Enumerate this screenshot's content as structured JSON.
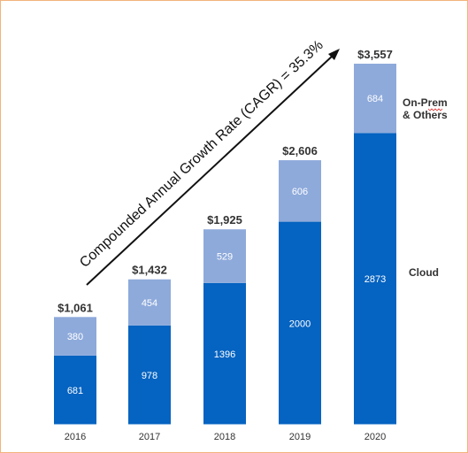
{
  "chart_data": {
    "type": "bar",
    "stacked": true,
    "categories": [
      "2016",
      "2017",
      "2018",
      "2019",
      "2020"
    ],
    "series": [
      {
        "name": "Cloud",
        "values": [
          681,
          978,
          1396,
          2000,
          2873
        ],
        "color": "#0563c1"
      },
      {
        "name": "On-Prem & Others",
        "values": [
          380,
          454,
          529,
          606,
          684
        ],
        "color": "#8eaadb"
      }
    ],
    "totals": [
      "$1,061",
      "$1,432",
      "$1,925",
      "$2,606",
      "$3,557"
    ],
    "total_values": [
      1061,
      1432,
      1925,
      2606,
      3557
    ],
    "annotation": "Compounded Annual Growth Rate (CAGR) = 35.3%",
    "legend_placement": "right",
    "grid": false,
    "ylim": [
      0,
      3557
    ]
  },
  "legend": {
    "on_prem_line1": "On-Prem",
    "on_prem_line2": "& Others",
    "cloud": "Cloud"
  },
  "colors": {
    "cloud": "#0563c1",
    "on_prem": "#8eaadb",
    "frame": "#f3b27a"
  }
}
